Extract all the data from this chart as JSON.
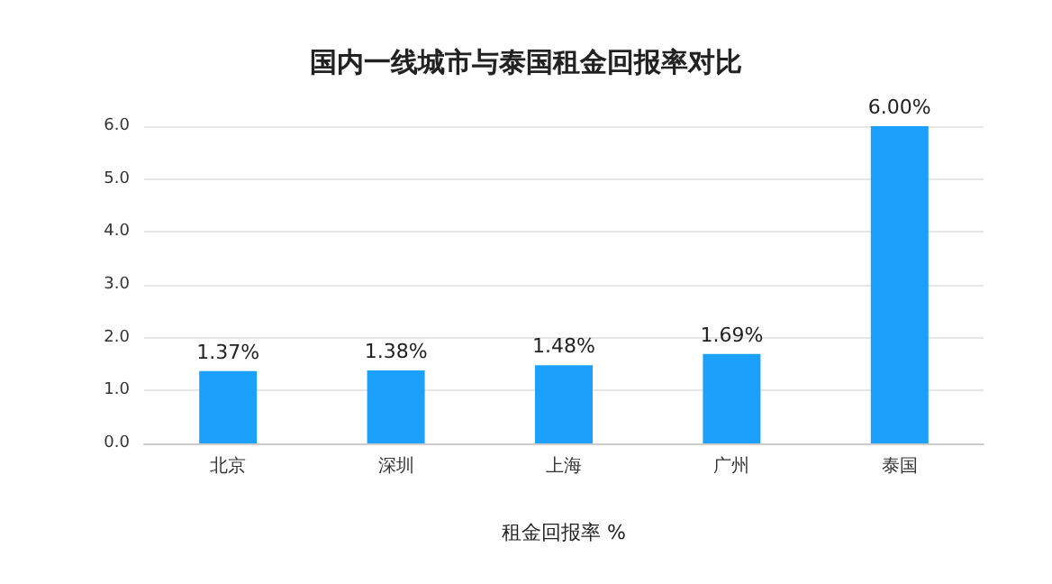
{
  "chart_data": {
    "type": "bar",
    "title": "国内一线城市与泰国租金回报率对比",
    "xlabel": "租金回报率 %",
    "categories": [
      "北京",
      "深圳",
      "上海",
      "广州",
      "泰国"
    ],
    "values": [
      1.37,
      1.38,
      1.48,
      1.69,
      6.0
    ],
    "value_labels": [
      "1.37%",
      "1.38%",
      "1.48%",
      "1.69%",
      "6.00%"
    ],
    "color": "#1ba1fb",
    "ylim": [
      0,
      6
    ],
    "yticks": [
      {
        "value": 0,
        "label": "0.0"
      },
      {
        "value": 1,
        "label": "1.0"
      },
      {
        "value": 2,
        "label": "2.0"
      },
      {
        "value": 3,
        "label": "3.0"
      },
      {
        "value": 4,
        "label": "4.0"
      },
      {
        "value": 5,
        "label": "5.0"
      },
      {
        "value": 6,
        "label": "6.0"
      }
    ],
    "grid": "y"
  }
}
